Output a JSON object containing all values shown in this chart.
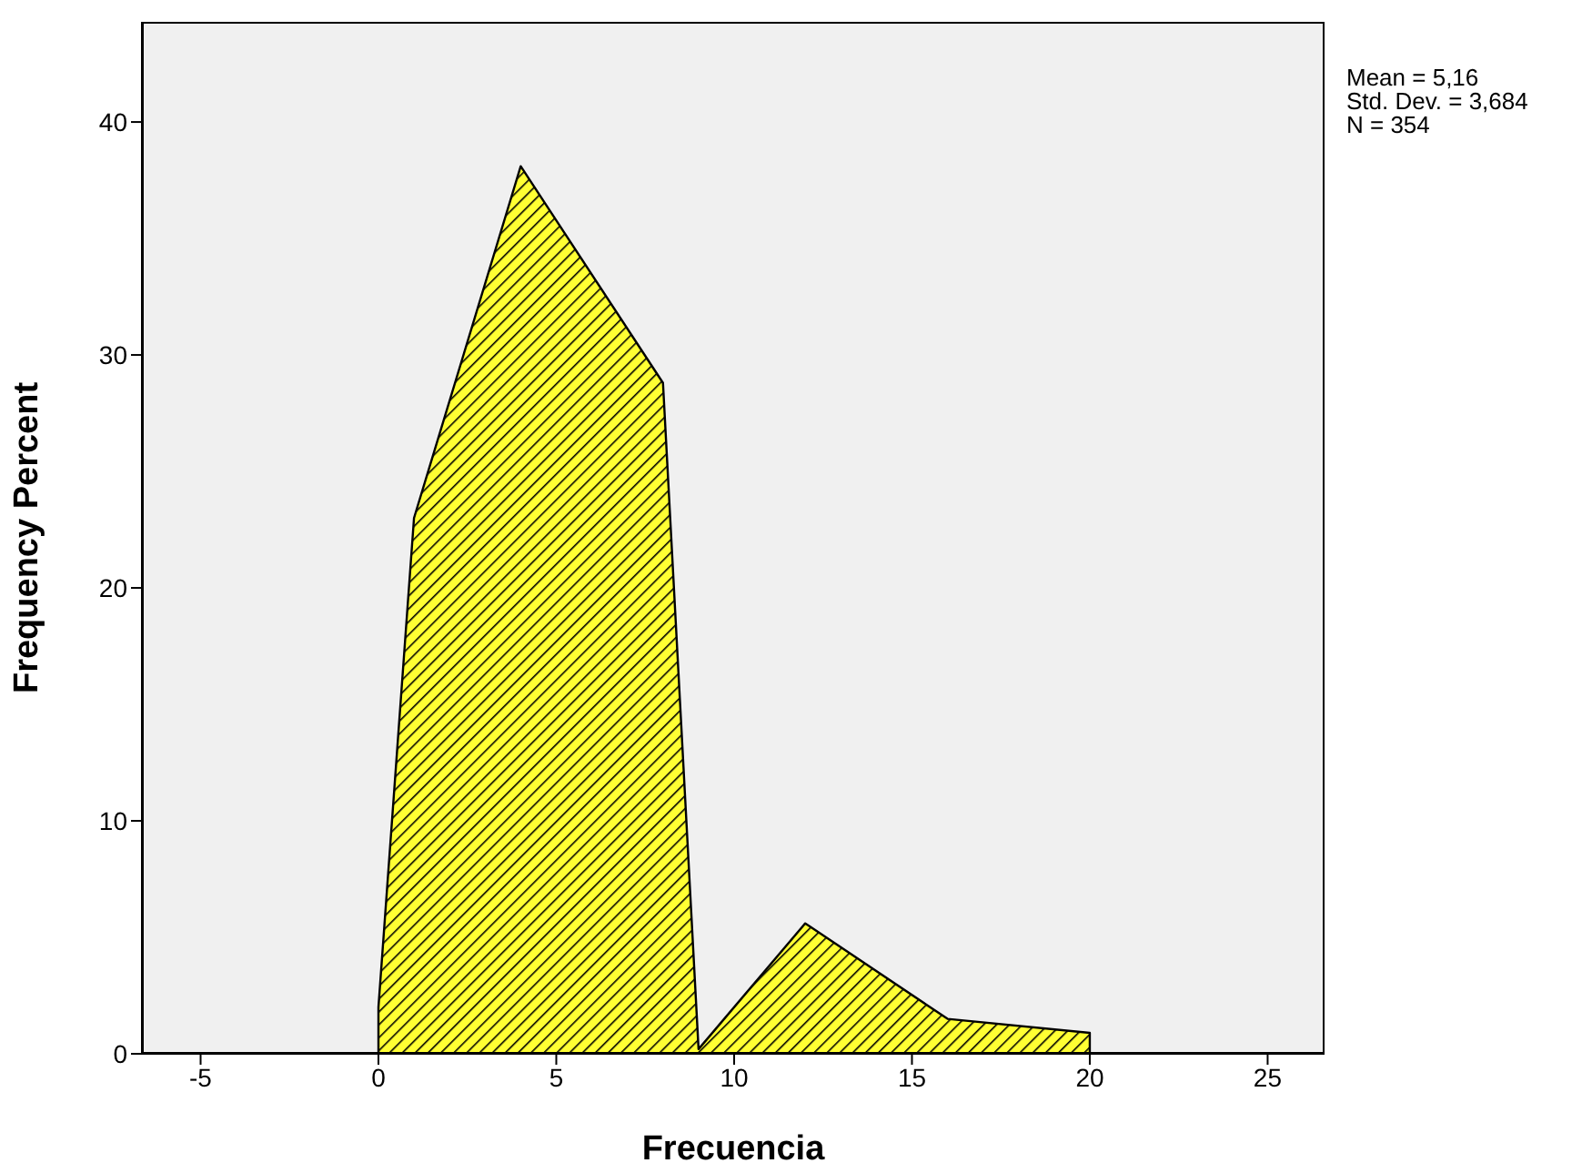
{
  "chart_data": {
    "type": "area",
    "xlabel": "Frecuencia",
    "ylabel": "Frequency Percent",
    "x": [
      0,
      0,
      1,
      4,
      8,
      9,
      12,
      16,
      20,
      20
    ],
    "series": [
      {
        "color": "#ffff33",
        "values": [
          0,
          2,
          23,
          38.1,
          28.8,
          0.2,
          5.6,
          1.5,
          0.9,
          0
        ]
      }
    ],
    "xlim": [
      -6.65,
      26.6
    ],
    "xticks": [
      -5,
      0,
      5,
      10,
      15,
      20,
      25
    ],
    "ylim": [
      0,
      44.3
    ],
    "yticks": [
      0,
      10,
      20,
      30,
      40
    ],
    "annotations": [
      "Mean = 5,16",
      "Std. Dev. = 3,684",
      "N = 354"
    ],
    "grid": false,
    "legend": false
  }
}
